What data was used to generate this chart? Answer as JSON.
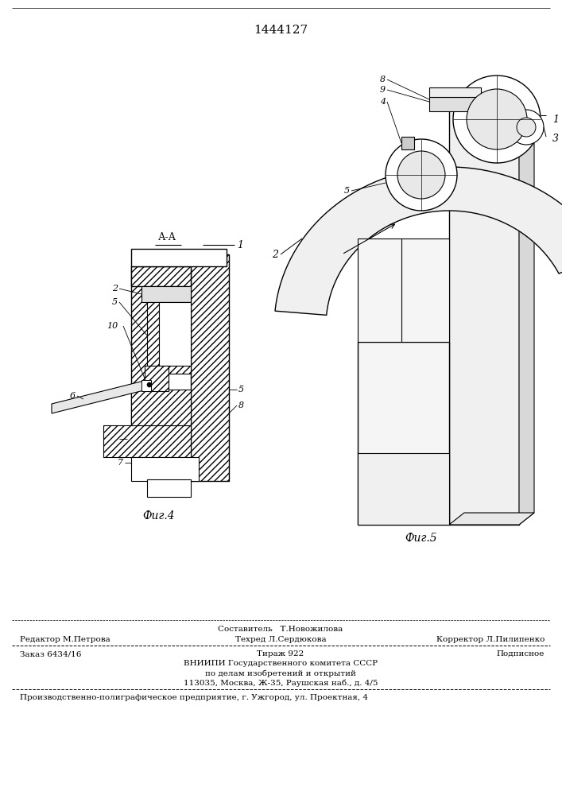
{
  "patent_number": "1444127",
  "bg_color": "#ffffff",
  "fig4_label": "Фиг.4",
  "fig5_label": "Фиг.5",
  "section_label": "А-А",
  "footer": {
    "line0_center": "Составитель   Т.Новожилова",
    "line1_left": "Редактор М.Петрова",
    "line1_center": "Техред Л.Сердюкова",
    "line1_right": "Корректор Л.Пилипенко",
    "line2_left": "Заказ 6434/16",
    "line2_center": "Тираж 922",
    "line2_right": "Подписное",
    "line3": "ВНИИПИ Государственного комитета СССР",
    "line4": "по делам изобретений и открытий",
    "line5": "113035, Москва, Ж-35, Раушская наб., д. 4/5",
    "line6": "Производственно-полиграфическое предприятие, г. Ужгород, ул. Проектная, 4"
  }
}
